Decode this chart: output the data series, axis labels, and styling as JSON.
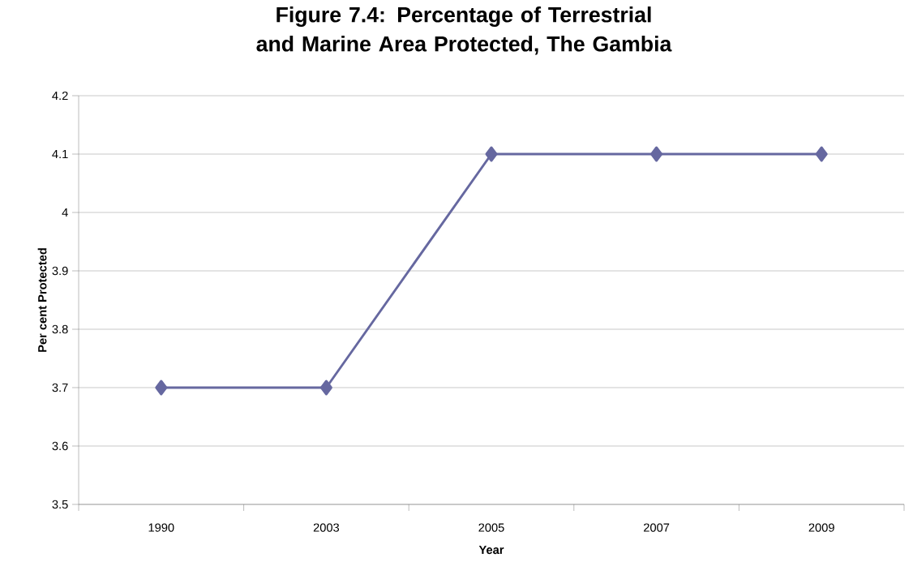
{
  "chart_data": {
    "type": "line",
    "title": "Figure 7.4: Percentage of Terrestrial  and Marine Area Protected, The Gambia",
    "xlabel": "Year",
    "ylabel": "Per cent Protected",
    "categories": [
      "1990",
      "2003",
      "2005",
      "2007",
      "2009"
    ],
    "series": [
      {
        "color": "#6668a0",
        "values": [
          3.7,
          3.7,
          4.1,
          4.1,
          4.1
        ]
      }
    ],
    "ylim": [
      3.5,
      4.2
    ],
    "yticks": [
      3.5,
      3.6,
      3.7,
      3.8,
      3.9,
      4,
      4.1,
      4.2
    ],
    "grid": "y",
    "marker": "diamond",
    "line_style": "solid"
  }
}
